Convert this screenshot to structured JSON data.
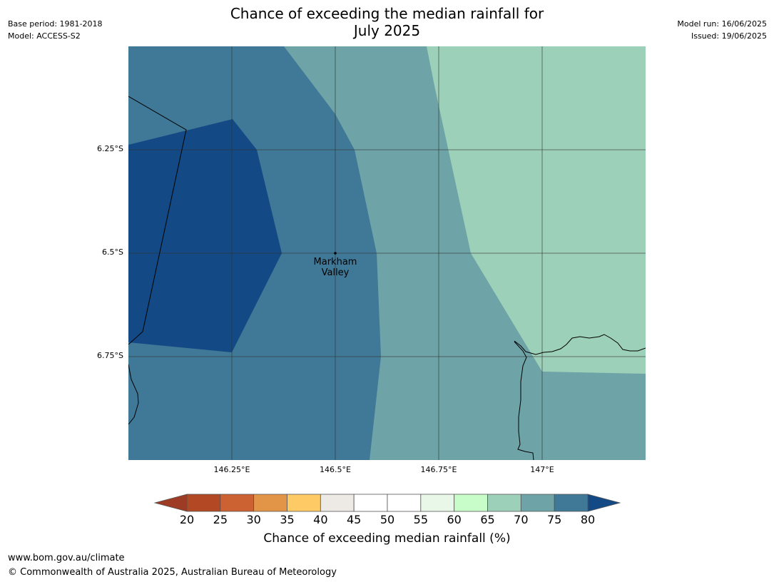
{
  "header": {
    "title_line1": "Chance of exceeding the median rainfall for",
    "title_line2": "July 2025",
    "base_period": "Base period: 1981-2018",
    "model": "Model: ACCESS-S2",
    "model_run": "Model run: 16/06/2025",
    "issued": "Issued: 19/06/2025"
  },
  "map": {
    "latitude_labels": [
      "6.25°S",
      "6.5°S",
      "6.75°S"
    ],
    "longitude_labels": [
      "146.25°E",
      "146.5°E",
      "146.75°E",
      "147°E"
    ],
    "place_label_line1": "Markham",
    "place_label_line2": "Valley",
    "colors": {
      "band_65_70": "#9dd0b8",
      "band_70_75": "#6ea3a7",
      "band_75_80": "#407897",
      "band_80_plus": "#134a85",
      "grid": "#333333",
      "coast": "#000000"
    }
  },
  "colorbar": {
    "ticks": [
      "20",
      "25",
      "30",
      "35",
      "40",
      "45",
      "50",
      "55",
      "60",
      "65",
      "70",
      "75",
      "80"
    ],
    "under_color": "#9e3b24",
    "over_color": "#134a85",
    "colors": [
      "#b24924",
      "#cc6131",
      "#e29447",
      "#fdca66",
      "#ede9e4",
      "#ffffff",
      "#ffffff",
      "#e9f7e9",
      "#c8fcc8",
      "#9dd0b8",
      "#6ea3a7",
      "#407897"
    ],
    "label": "Chance of exceeding median rainfall (%)"
  },
  "footer": {
    "url": "www.bom.gov.au/climate",
    "copyright": "© Commonwealth of Australia 2025, Australian Bureau of Meteorology"
  }
}
